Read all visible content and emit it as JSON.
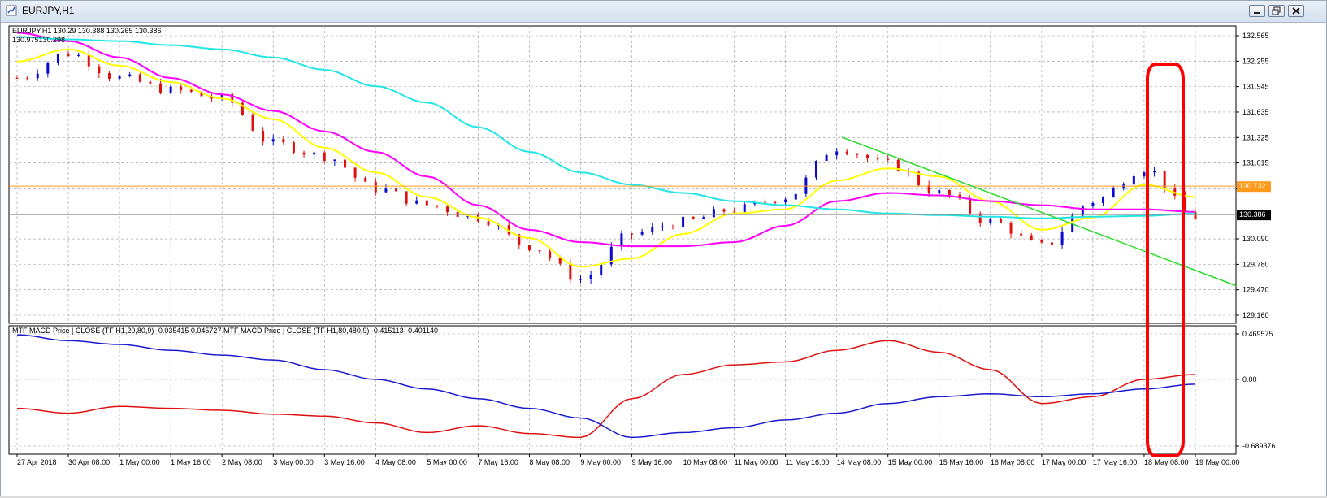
{
  "window": {
    "title": "EURJPY,H1"
  },
  "price_chart": {
    "header_line1": "EURJPY,H1  130.29 130.388 130.265 130.386",
    "header_line2": "130.975130.298",
    "price_axis": [
      "132.565",
      "132.255",
      "131.945",
      "131.635",
      "131.325",
      "131.015",
      "130.700",
      "130.390",
      "130.090",
      "129.780",
      "129.470",
      "129.160"
    ],
    "hline_label": "130.732",
    "current_label": "130.386",
    "colors": {
      "bull": "#0a0ad0",
      "bear": "#e01010",
      "ma_fast": "#ffff00",
      "ma_mid": "#ff00ff",
      "ma_slow": "#22e6e6",
      "trendline": "#22dd22",
      "hline": "#ff9a1a",
      "highlight": "#ff0000"
    }
  },
  "macd_panel": {
    "header": "MTF MACD Price | CLOSE  (TF H1,20,80,9) -0.035415 0.045727  MTF MACD Price | CLOSE  (TF H1,80,480,9) -0.415113 -0.401140",
    "axis_labels": [
      "0.469575",
      "0.00",
      "-0.689376"
    ]
  },
  "time_axis": [
    "27 Apr 2018",
    "30 Apr 08:00",
    "1 May 00:00",
    "1 May 16:00",
    "2 May 08:00",
    "3 May 00:00",
    "3 May 16:00",
    "4 May 08:00",
    "5 May 00:00",
    "7 May 16:00",
    "8 May 08:00",
    "9 May 00:00",
    "9 May 16:00",
    "10 May 08:00",
    "11 May 00:00",
    "11 May 16:00",
    "14 May 08:00",
    "15 May 00:00",
    "15 May 16:00",
    "16 May 08:00",
    "17 May 00:00",
    "17 May 16:00",
    "18 May 08:00",
    "19 May 00:00"
  ],
  "chart_data": {
    "type": "line",
    "symbol": "EURJPY",
    "timeframe": "H1",
    "price_range": [
      129.16,
      132.565
    ],
    "x": [
      "27 Apr 2018",
      "30 Apr 08:00",
      "1 May 00:00",
      "1 May 16:00",
      "2 May 08:00",
      "3 May 00:00",
      "3 May 16:00",
      "4 May 08:00",
      "5 May 00:00",
      "7 May 16:00",
      "8 May 08:00",
      "9 May 00:00",
      "9 May 16:00",
      "10 May 08:00",
      "11 May 00:00",
      "11 May 16:00",
      "14 May 08:00",
      "15 May 00:00",
      "15 May 16:00",
      "16 May 08:00",
      "17 May 00:00",
      "17 May 16:00",
      "18 May 08:00",
      "19 May 00:00"
    ],
    "series": [
      {
        "values": [
          132.05,
          132.35,
          132.05,
          131.9,
          131.8,
          131.25,
          131.1,
          130.7,
          130.5,
          130.35,
          130.0,
          129.6,
          130.15,
          130.3,
          130.45,
          130.6,
          131.2,
          131.0,
          130.65,
          130.3,
          130.0,
          130.55,
          130.95,
          130.35
        ]
      },
      {
        "values": [
          132.25,
          132.4,
          132.2,
          132.0,
          131.8,
          131.55,
          131.2,
          130.9,
          130.6,
          130.35,
          130.1,
          129.75,
          129.85,
          130.15,
          130.4,
          130.45,
          130.8,
          130.95,
          130.85,
          130.55,
          130.2,
          130.35,
          130.75,
          130.6
        ]
      },
      {
        "values": [
          132.6,
          132.5,
          132.3,
          132.05,
          131.85,
          131.65,
          131.4,
          131.15,
          130.85,
          130.5,
          130.2,
          130.05,
          130.0,
          130.0,
          130.05,
          130.25,
          130.55,
          130.65,
          130.62,
          130.55,
          130.5,
          130.45,
          130.45,
          130.42
        ]
      },
      {
        "values": [
          132.55,
          132.52,
          132.5,
          132.45,
          132.4,
          132.3,
          132.15,
          131.95,
          131.75,
          131.45,
          131.15,
          130.9,
          130.75,
          130.65,
          130.55,
          130.5,
          130.45,
          130.4,
          130.38,
          130.36,
          130.34,
          130.36,
          130.37,
          130.4
        ]
      }
    ],
    "macd": {
      "range": [
        -0.689376,
        0.469575
      ],
      "series": [
        {
          "values": [
            -0.3,
            -0.35,
            -0.28,
            -0.3,
            -0.32,
            -0.36,
            -0.38,
            -0.45,
            -0.55,
            -0.48,
            -0.56,
            -0.6,
            -0.2,
            0.05,
            0.15,
            0.18,
            0.3,
            0.4,
            0.28,
            0.1,
            -0.25,
            -0.18,
            0.0,
            0.05
          ]
        },
        {
          "values": [
            0.46,
            0.4,
            0.36,
            0.3,
            0.25,
            0.2,
            0.1,
            0.0,
            -0.1,
            -0.2,
            -0.3,
            -0.4,
            -0.6,
            -0.55,
            -0.5,
            -0.42,
            -0.35,
            -0.25,
            -0.18,
            -0.15,
            -0.18,
            -0.15,
            -0.1,
            -0.05
          ]
        }
      ]
    }
  }
}
